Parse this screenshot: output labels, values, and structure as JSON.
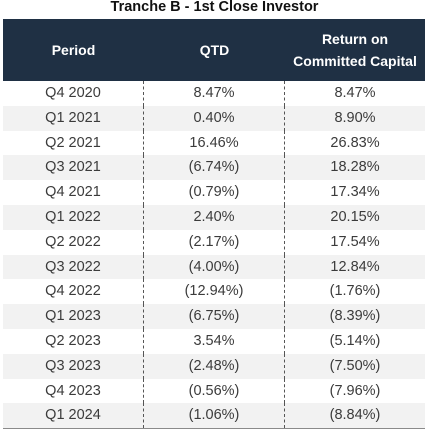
{
  "title": "Tranche B - 1st Close Investor",
  "header": {
    "period": "Period",
    "qtd": "QTD",
    "return_line1": "Return on",
    "return_line2": "Committed Capital"
  },
  "rows": [
    {
      "period": "Q4 2020",
      "qtd": "8.47%",
      "return": "8.47%"
    },
    {
      "period": "Q1 2021",
      "qtd": "0.40%",
      "return": "8.90%"
    },
    {
      "period": "Q2 2021",
      "qtd": "16.46%",
      "return": "26.83%"
    },
    {
      "period": "Q3 2021",
      "qtd": "(6.74%)",
      "return": "18.28%"
    },
    {
      "period": "Q4 2021",
      "qtd": "(0.79%)",
      "return": "17.34%"
    },
    {
      "period": "Q1 2022",
      "qtd": "2.40%",
      "return": "20.15%"
    },
    {
      "period": "Q2 2022",
      "qtd": "(2.17%)",
      "return": "17.54%"
    },
    {
      "period": "Q3 2022",
      "qtd": "(4.00%)",
      "return": "12.84%"
    },
    {
      "period": "Q4 2022",
      "qtd": "(12.94%)",
      "return": "(1.76%)"
    },
    {
      "period": "Q1 2023",
      "qtd": "(6.75%)",
      "return": "(8.39%)"
    },
    {
      "period": "Q2 2023",
      "qtd": "3.54%",
      "return": "(5.14%)"
    },
    {
      "period": "Q3 2023",
      "qtd": "(2.48%)",
      "return": "(7.50%)"
    },
    {
      "period": "Q4 2023",
      "qtd": "(0.56%)",
      "return": "(7.96%)"
    },
    {
      "period": "Q1 2024",
      "qtd": "(1.06%)",
      "return": "(8.84%)"
    }
  ],
  "colors": {
    "header_bg": "#1f3044",
    "header_text": "#ffffff",
    "row_shade": "#f2f2f2"
  }
}
